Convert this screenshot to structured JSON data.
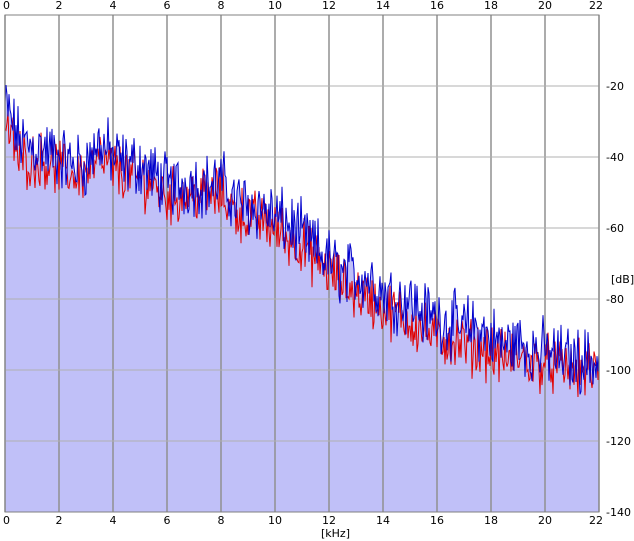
{
  "chart_data": {
    "type": "line",
    "xlabel": "[kHz]",
    "ylabel": "[dB]",
    "xlim": [
      0,
      22
    ],
    "ylim": [
      -140,
      0
    ],
    "x_ticks": [
      "0",
      "2",
      "4",
      "6",
      "8",
      "10",
      "12",
      "14",
      "16",
      "18",
      "20",
      "22"
    ],
    "y_ticks": [
      "-20",
      "-40",
      "-60",
      "-80",
      "-100",
      "-120",
      "-140"
    ],
    "x_tick_values": [
      0,
      2,
      4,
      6,
      8,
      10,
      12,
      14,
      16,
      18,
      20,
      22
    ],
    "y_tick_values": [
      -20,
      -40,
      -60,
      -80,
      -100,
      -120,
      -140
    ],
    "grid": true,
    "colors": {
      "fill": "#c0c0f8",
      "channel_a": "#0000cc",
      "channel_b": "#e00000",
      "grid": "#909090"
    },
    "series": [
      {
        "color": "#0000cc",
        "x": [
          0,
          0.5,
          1,
          1.5,
          2,
          2.5,
          3,
          3.5,
          4,
          4.5,
          5,
          5.5,
          6,
          6.5,
          7,
          7.5,
          8,
          8.5,
          9,
          9.5,
          10,
          10.5,
          11,
          11.5,
          12,
          12.5,
          13,
          13.5,
          14,
          14.5,
          15,
          15.5,
          16,
          16.5,
          17,
          17.5,
          18,
          18.5,
          19,
          19.5,
          20,
          20.5,
          21,
          21.5,
          22
        ],
        "values": [
          -25,
          -35,
          -37,
          -38,
          -40,
          -42,
          -42,
          -36,
          -40,
          -42,
          -42,
          -45,
          -48,
          -48,
          -47,
          -48,
          -47,
          -52,
          -54,
          -54,
          -57,
          -59,
          -62,
          -66,
          -69,
          -73,
          -73,
          -74,
          -78,
          -80,
          -80,
          -84,
          -85,
          -87,
          -88,
          -88,
          -91,
          -93,
          -92,
          -94,
          -95,
          -96,
          -97,
          -97,
          -98
        ]
      },
      {
        "color": "#e00000",
        "x": [
          0,
          0.5,
          1,
          1.5,
          2,
          2.5,
          3,
          3.5,
          4,
          4.5,
          5,
          5.5,
          6,
          6.5,
          7,
          7.5,
          8,
          8.5,
          9,
          9.5,
          10,
          10.5,
          11,
          11.5,
          12,
          12.5,
          13,
          13.5,
          14,
          14.5,
          15,
          15.5,
          16,
          16.5,
          17,
          17.5,
          18,
          18.5,
          19,
          19.5,
          20,
          20.5,
          21,
          21.5,
          22
        ],
        "values": [
          -30,
          -40,
          -41,
          -41,
          -43,
          -45,
          -44,
          -41,
          -43,
          -45,
          -46,
          -48,
          -51,
          -51,
          -50,
          -51,
          -50,
          -55,
          -57,
          -58,
          -60,
          -63,
          -65,
          -69,
          -72,
          -76,
          -78,
          -80,
          -83,
          -84,
          -86,
          -89,
          -91,
          -92,
          -93,
          -94,
          -95,
          -97,
          -96,
          -98,
          -98,
          -99,
          -100,
          -100,
          -101
        ]
      }
    ]
  }
}
